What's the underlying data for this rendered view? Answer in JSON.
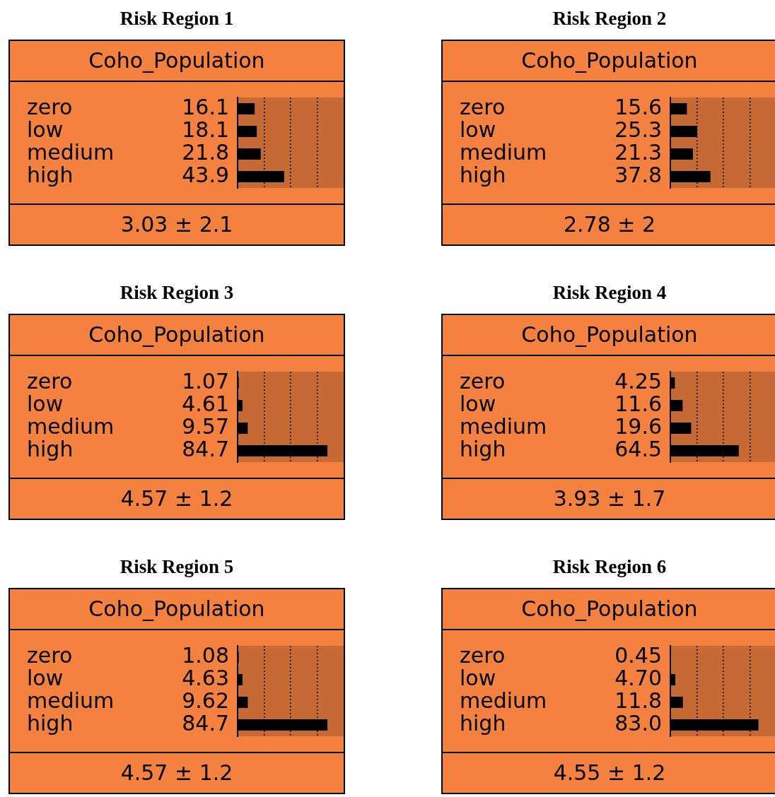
{
  "chart_data": [
    {
      "type": "bar",
      "orientation": "horizontal",
      "title": "Risk Region 1",
      "subtitle": "Coho_Population",
      "categories": [
        "zero",
        "low",
        "medium",
        "high"
      ],
      "values": [
        16.1,
        18.1,
        21.8,
        43.9
      ],
      "value_labels": [
        "16.1",
        "18.1",
        "21.8",
        "43.9"
      ],
      "color": "#000000",
      "xlim": [
        0,
        100
      ],
      "xticks": [
        {
          "value": 25,
          "label": null
        },
        {
          "value": 50,
          "label": null
        },
        {
          "value": 75,
          "label": null
        }
      ],
      "grid": "x",
      "tick_labels": "y",
      "legend": false,
      "annotations": [
        "3.03 ± 2.1"
      ]
    },
    {
      "type": "bar",
      "orientation": "horizontal",
      "title": "Risk Region 2",
      "subtitle": "Coho_Population",
      "categories": [
        "zero",
        "low",
        "medium",
        "high"
      ],
      "values": [
        15.6,
        25.3,
        21.3,
        37.8
      ],
      "value_labels": [
        "15.6",
        "25.3",
        "21.3",
        "37.8"
      ],
      "color": "#000000",
      "xlim": [
        0,
        100
      ],
      "xticks": [
        {
          "value": 25,
          "label": null
        },
        {
          "value": 50,
          "label": null
        },
        {
          "value": 75,
          "label": null
        }
      ],
      "grid": "x",
      "tick_labels": "y",
      "legend": false,
      "annotations": [
        "2.78 ± 2"
      ]
    },
    {
      "type": "bar",
      "orientation": "horizontal",
      "title": "Risk Region 3",
      "subtitle": "Coho_Population",
      "categories": [
        "zero",
        "low",
        "medium",
        "high"
      ],
      "values": [
        1.07,
        4.61,
        9.57,
        84.7
      ],
      "value_labels": [
        "1.07",
        "4.61",
        "9.57",
        "84.7"
      ],
      "color": "#000000",
      "xlim": [
        0,
        100
      ],
      "xticks": [
        {
          "value": 25,
          "label": null
        },
        {
          "value": 50,
          "label": null
        },
        {
          "value": 75,
          "label": null
        }
      ],
      "grid": "x",
      "tick_labels": "y",
      "legend": false,
      "annotations": [
        "4.57 ± 1.2"
      ]
    },
    {
      "type": "bar",
      "orientation": "horizontal",
      "title": "Risk Region 4",
      "subtitle": "Coho_Population",
      "categories": [
        "zero",
        "low",
        "medium",
        "high"
      ],
      "values": [
        4.25,
        11.6,
        19.6,
        64.5
      ],
      "value_labels": [
        "4.25",
        "11.6",
        "19.6",
        "64.5"
      ],
      "color": "#000000",
      "xlim": [
        0,
        100
      ],
      "xticks": [
        {
          "value": 25,
          "label": null
        },
        {
          "value": 50,
          "label": null
        },
        {
          "value": 75,
          "label": null
        }
      ],
      "grid": "x",
      "tick_labels": "y",
      "legend": false,
      "annotations": [
        "3.93 ± 1.7"
      ]
    },
    {
      "type": "bar",
      "orientation": "horizontal",
      "title": "Risk Region 5",
      "subtitle": "Coho_Population",
      "categories": [
        "zero",
        "low",
        "medium",
        "high"
      ],
      "values": [
        1.08,
        4.63,
        9.62,
        84.7
      ],
      "value_labels": [
        "1.08",
        "4.63",
        "9.62",
        "84.7"
      ],
      "color": "#000000",
      "xlim": [
        0,
        100
      ],
      "xticks": [
        {
          "value": 25,
          "label": null
        },
        {
          "value": 50,
          "label": null
        },
        {
          "value": 75,
          "label": null
        }
      ],
      "grid": "x",
      "tick_labels": "y",
      "legend": false,
      "annotations": [
        "4.57 ± 1.2"
      ]
    },
    {
      "type": "bar",
      "orientation": "horizontal",
      "title": "Risk Region 6",
      "subtitle": "Coho_Population",
      "categories": [
        "zero",
        "low",
        "medium",
        "high"
      ],
      "values": [
        0.45,
        4.7,
        11.8,
        83.0
      ],
      "value_labels": [
        "0.45",
        "4.70",
        "11.8",
        "83.0"
      ],
      "color": "#000000",
      "xlim": [
        0,
        100
      ],
      "xticks": [
        {
          "value": 25,
          "label": null
        },
        {
          "value": 50,
          "label": null
        },
        {
          "value": 75,
          "label": null
        }
      ],
      "grid": "x",
      "tick_labels": "y",
      "legend": false,
      "annotations": [
        "4.55 ± 1.2"
      ]
    }
  ]
}
